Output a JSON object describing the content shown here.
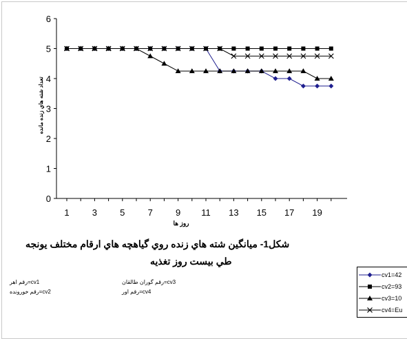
{
  "chart_data": {
    "type": "line",
    "title": "",
    "xlabel": "روز ها",
    "ylabel": "تعداد شته هاي زنده مانده",
    "ylim": [
      0,
      6
    ],
    "yticks": [
      "0",
      "1",
      "2",
      "3",
      "4",
      "5",
      "6"
    ],
    "x": [
      1,
      2,
      3,
      4,
      5,
      6,
      7,
      8,
      9,
      10,
      11,
      12,
      13,
      14,
      15,
      16,
      17,
      18,
      19,
      20
    ],
    "xtick_labels": [
      "1",
      "3",
      "5",
      "7",
      "9",
      "11",
      "13",
      "15",
      "17",
      "19"
    ],
    "series": [
      {
        "name": "cv1=42",
        "color": "#1f1f8f",
        "marker": "diamond",
        "values": [
          5,
          5,
          5,
          5,
          5,
          5,
          5,
          5,
          5,
          5,
          5,
          4.25,
          4.25,
          4.25,
          4.25,
          4,
          4,
          3.75,
          3.75,
          3.75
        ]
      },
      {
        "name": "cv2=93",
        "color": "#000000",
        "marker": "square",
        "values": [
          5,
          5,
          5,
          5,
          5,
          5,
          5,
          5,
          5,
          5,
          5,
          5,
          5,
          5,
          5,
          5,
          5,
          5,
          5,
          5
        ]
      },
      {
        "name": "cv3=10",
        "color": "#000000",
        "marker": "triangle",
        "values": [
          5,
          5,
          5,
          5,
          5,
          5,
          4.75,
          4.5,
          4.25,
          4.25,
          4.25,
          4.25,
          4.25,
          4.25,
          4.25,
          4.25,
          4.25,
          4.25,
          4,
          4
        ]
      },
      {
        "name": "cv4=Eu",
        "color": "#000000",
        "marker": "x",
        "values": [
          5,
          5,
          5,
          5,
          5,
          5,
          5,
          5,
          5,
          5,
          5,
          5,
          4.75,
          4.75,
          4.75,
          4.75,
          4.75,
          4.75,
          4.75,
          4.75
        ]
      }
    ],
    "legend_position": "bottom-right",
    "grid": false
  },
  "caption": {
    "line1": "شكل1- ميانگين شته هاي زنده روي گياهچه هاي ارقام  مختلف يونجه",
    "line2": "طي بيست روز تغذيه"
  },
  "notes": {
    "n1": "رقم اهر=cv1",
    "n2": "رقم خورونده=cv2",
    "n3": "رقم گوران طالقان=cv3",
    "n4": "رقم اور=cv4"
  }
}
